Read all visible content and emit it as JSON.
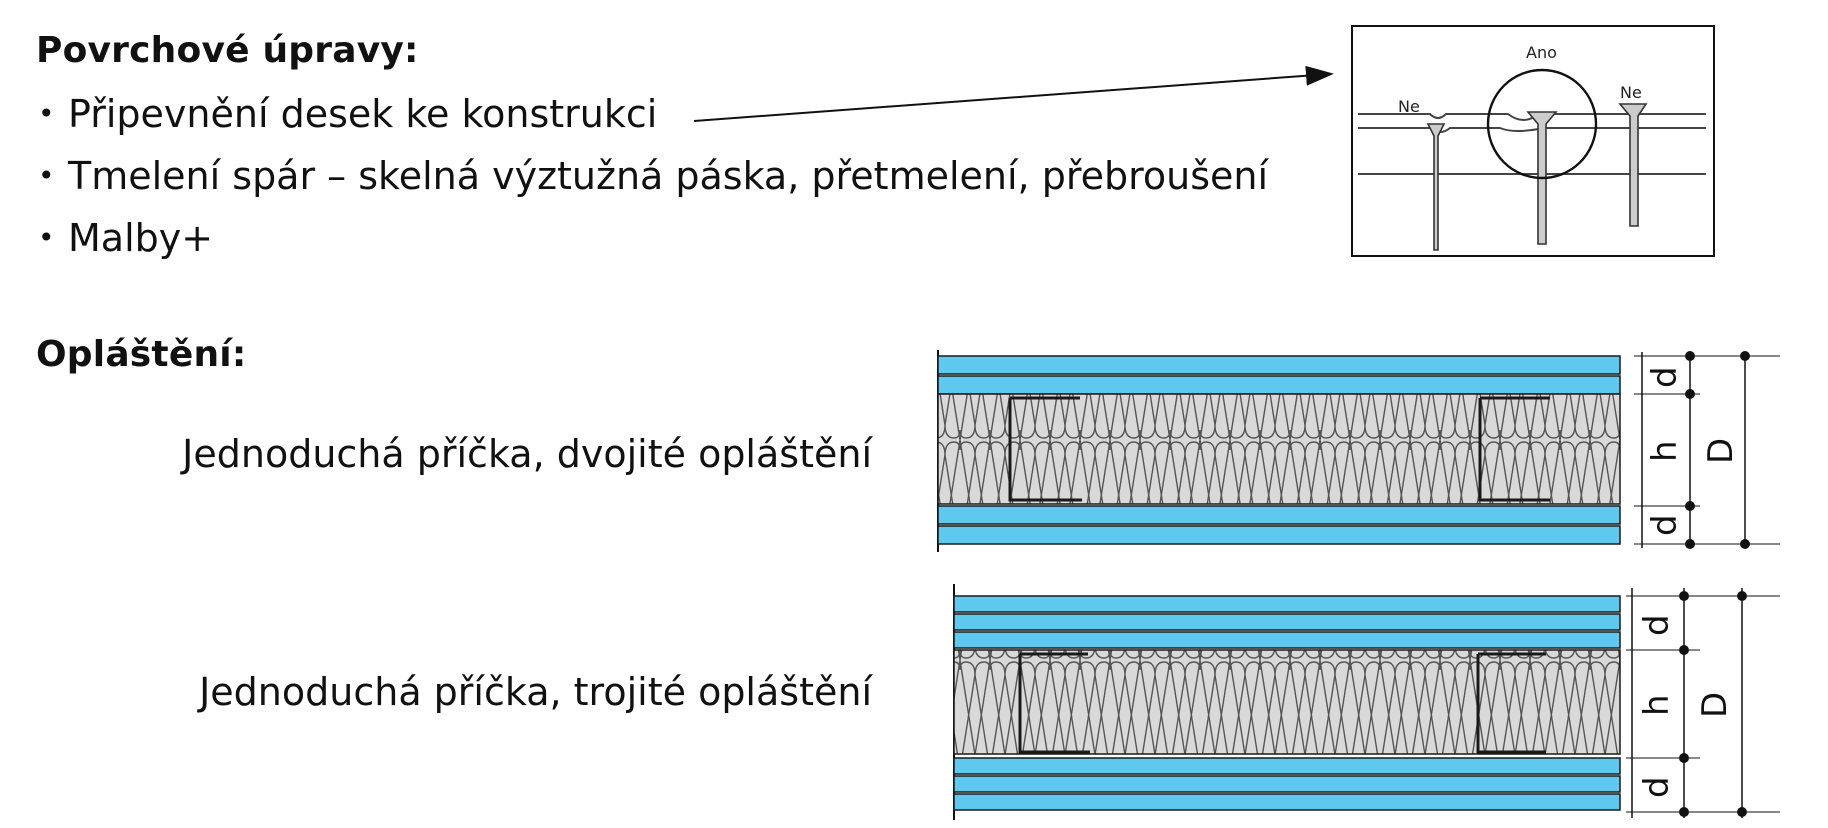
{
  "sections": {
    "surface": {
      "heading": "Povrchové úpravy:",
      "bullets": [
        "Připevnění desek ke konstrukci",
        "Tmelení spár – skelná výztužná páska, přetmelení, přebroušení",
        "Malby+"
      ]
    },
    "cladding": {
      "heading": "Opláštění:",
      "captions": [
        "Jednoduchá příčka, dvojité opláštění",
        "Jednoduchá příčka, trojité opláštění"
      ]
    }
  },
  "screw_detail": {
    "labels": {
      "wrong_left": "Ne",
      "correct": "Ano",
      "wrong_right": "Ne"
    }
  },
  "dimensions": {
    "board": "d",
    "core": "h",
    "total": "D"
  },
  "colors": {
    "board": "#5ec8ef",
    "insulation": "#d9d9d9",
    "line": "#1a1a1a"
  }
}
